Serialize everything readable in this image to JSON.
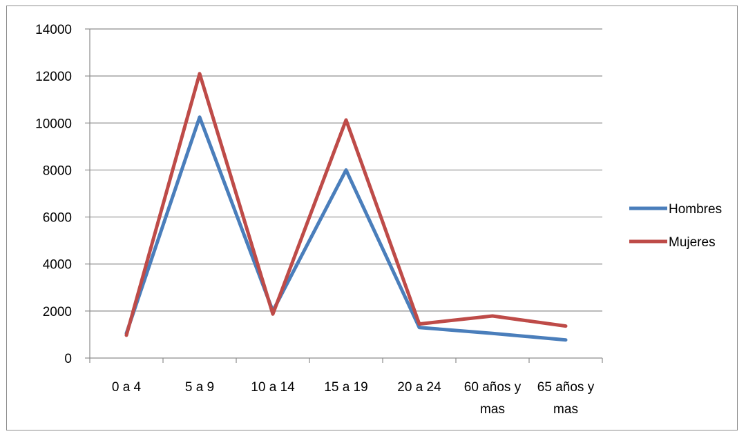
{
  "chart_data": {
    "type": "line",
    "title": "",
    "xlabel": "",
    "ylabel": "",
    "categories": [
      [
        "0 a 4"
      ],
      [
        "5 a 9"
      ],
      [
        "10 a 14"
      ],
      [
        "15 a 19"
      ],
      [
        "20 a 24"
      ],
      [
        "60 años y",
        "mas"
      ],
      [
        "65 años y",
        "mas"
      ]
    ],
    "ylim": [
      0,
      14000
    ],
    "yticks": [
      "0",
      "2000",
      "4000",
      "6000",
      "8000",
      "10000",
      "12000",
      "14000"
    ],
    "grid": true,
    "legend_position": "right",
    "series": [
      {
        "name": "Hombres",
        "color": "#4a7ebb",
        "values": [
          1050,
          10250,
          2000,
          8000,
          1300,
          1050,
          770
        ]
      },
      {
        "name": "Mujeres",
        "color": "#be4b48",
        "values": [
          970,
          12100,
          1870,
          10130,
          1450,
          1790,
          1360
        ]
      }
    ]
  }
}
